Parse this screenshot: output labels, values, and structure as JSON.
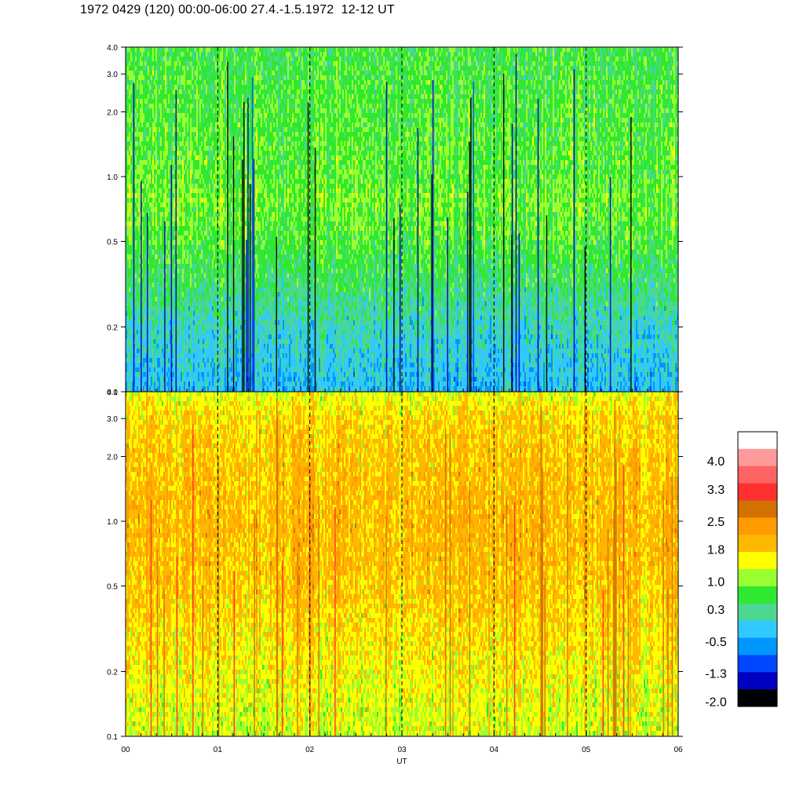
{
  "title": "1972 0429 (120) 00:00-06:00 27.4.-1.5.1972  12-12 UT",
  "chart_data": [
    {
      "type": "heatmap",
      "panel": "top",
      "x_ticks": [
        "00",
        "01",
        "02",
        "03",
        "04",
        "05",
        "06"
      ],
      "x_range_hours": [
        0,
        6
      ],
      "y_scale": "log",
      "y_ticks": [
        "0.1",
        "0.2",
        "0.5",
        "1.0",
        "2.0",
        "3.0",
        "4.0"
      ],
      "y_tick_values": [
        0.1,
        0.2,
        0.5,
        1.0,
        2.0,
        3.0,
        4.0
      ],
      "y_range": [
        0.1,
        4.0
      ],
      "dashed_gridlines_hours": [
        1,
        2,
        3,
        4,
        5
      ],
      "value_profile_by_y": [
        {
          "y": 0.1,
          "value": -0.4
        },
        {
          "y": 0.2,
          "value": -0.1
        },
        {
          "y": 0.35,
          "value": 0.3
        },
        {
          "y": 0.5,
          "value": 0.5
        },
        {
          "y": 0.8,
          "value": 0.65
        },
        {
          "y": 1.0,
          "value": 0.55
        },
        {
          "y": 2.0,
          "value": 0.5
        },
        {
          "y": 4.0,
          "value": 0.4
        }
      ]
    },
    {
      "type": "heatmap",
      "panel": "bottom",
      "x_ticks": [
        "00",
        "01",
        "02",
        "03",
        "04",
        "05",
        "06"
      ],
      "x_range_hours": [
        0,
        6
      ],
      "xlabel": "UT",
      "y_scale": "log",
      "y_ticks": [
        "0.1",
        "0.2",
        "0.5",
        "1.0",
        "2.0",
        "3.0",
        "4.0"
      ],
      "y_tick_values": [
        0.1,
        0.2,
        0.5,
        1.0,
        2.0,
        3.0,
        4.0
      ],
      "y_range": [
        0.1,
        4.0
      ],
      "dashed_gridlines_hours": [
        1,
        2,
        3,
        4,
        5
      ],
      "value_profile_by_y": [
        {
          "y": 0.1,
          "value": 1.0
        },
        {
          "y": 0.2,
          "value": 1.2
        },
        {
          "y": 0.5,
          "value": 1.5
        },
        {
          "y": 1.0,
          "value": 1.6
        },
        {
          "y": 2.0,
          "value": 1.5
        },
        {
          "y": 3.0,
          "value": 1.4
        },
        {
          "y": 4.0,
          "value": 1.1
        }
      ]
    }
  ],
  "colorbar": {
    "labels": [
      "4.0",
      "3.3",
      "2.5",
      "1.8",
      "1.0",
      "0.3",
      "-0.5",
      "-1.3",
      "-2.0"
    ],
    "label_values": [
      4.0,
      3.3,
      2.5,
      1.8,
      1.0,
      0.3,
      -0.5,
      -1.3,
      -2.0
    ],
    "colors_top_to_bottom": [
      "#ffffff",
      "#ff9a9a",
      "#ff6464",
      "#ff3030",
      "#d27000",
      "#ff9a00",
      "#ffb800",
      "#ffff00",
      "#9aff30",
      "#30e830",
      "#4cd890",
      "#30c8ff",
      "#0096ff",
      "#0048ff",
      "#0000c0",
      "#000000"
    ]
  },
  "colors": {
    "dashed_line": "#000000",
    "axis": "#000000"
  }
}
